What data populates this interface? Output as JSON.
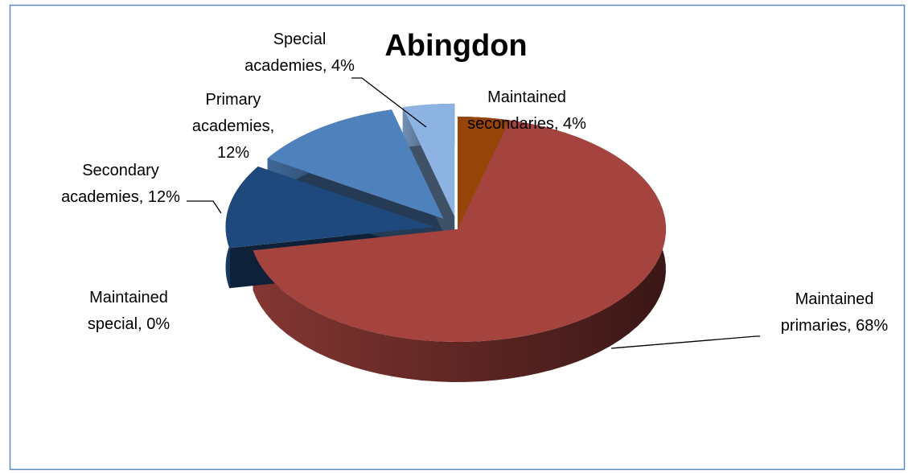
{
  "chart_data": {
    "type": "pie",
    "title": "Abingdon",
    "values": [
      4,
      68,
      0,
      12,
      12,
      4
    ],
    "value_labels": [
      "Maintained secondaries, 4%",
      "Maintained primaries, 68%",
      "Maintained special, 0%",
      "Secondary academies, 12%",
      "Primary academies, 12%",
      "Special academies, 4%"
    ],
    "colors": [
      "#974409",
      "#a5433f",
      "#6b2e2a",
      "#1f497d",
      "#4f81bd",
      "#8db3e2"
    ],
    "exploded": [
      false,
      false,
      false,
      true,
      true,
      true
    ]
  }
}
